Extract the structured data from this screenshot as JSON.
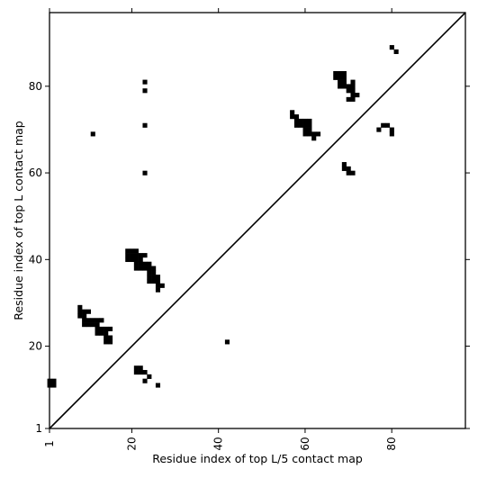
{
  "chart_data": {
    "type": "heatmap",
    "title": "",
    "xlabel": "Residue index of top L/5 contact map",
    "ylabel": "Residue index of top L contact map",
    "xlim": [
      1,
      97
    ],
    "ylim": [
      1,
      97
    ],
    "xticks": [
      1,
      20,
      40,
      60,
      80
    ],
    "yticks": [
      1,
      20,
      40,
      60,
      80
    ],
    "diagonal": true,
    "colors": {
      "cell": "#000000",
      "background": "#ffffff",
      "frame": "#000000"
    },
    "upper_cells": [
      [
        1,
        11
      ],
      [
        2,
        11
      ],
      [
        1,
        12
      ],
      [
        2,
        12
      ],
      [
        8,
        27
      ],
      [
        9,
        27
      ],
      [
        8,
        28
      ],
      [
        9,
        28
      ],
      [
        10,
        28
      ],
      [
        8,
        29
      ],
      [
        9,
        25
      ],
      [
        10,
        25
      ],
      [
        11,
        25
      ],
      [
        12,
        25
      ],
      [
        9,
        26
      ],
      [
        10,
        26
      ],
      [
        11,
        26
      ],
      [
        12,
        26
      ],
      [
        13,
        26
      ],
      [
        12,
        23
      ],
      [
        13,
        23
      ],
      [
        14,
        23
      ],
      [
        12,
        24
      ],
      [
        13,
        24
      ],
      [
        14,
        24
      ],
      [
        15,
        24
      ],
      [
        14,
        21
      ],
      [
        15,
        21
      ],
      [
        14,
        22
      ],
      [
        15,
        22
      ],
      [
        19,
        40
      ],
      [
        20,
        40
      ],
      [
        21,
        40
      ],
      [
        22,
        40
      ],
      [
        19,
        41
      ],
      [
        20,
        41
      ],
      [
        21,
        41
      ],
      [
        22,
        41
      ],
      [
        23,
        41
      ],
      [
        19,
        42
      ],
      [
        20,
        42
      ],
      [
        21,
        42
      ],
      [
        21,
        38
      ],
      [
        22,
        38
      ],
      [
        23,
        38
      ],
      [
        24,
        38
      ],
      [
        25,
        38
      ],
      [
        21,
        39
      ],
      [
        22,
        39
      ],
      [
        23,
        39
      ],
      [
        24,
        39
      ],
      [
        24,
        35
      ],
      [
        25,
        35
      ],
      [
        26,
        35
      ],
      [
        24,
        36
      ],
      [
        25,
        36
      ],
      [
        26,
        36
      ],
      [
        24,
        37
      ],
      [
        25,
        37
      ],
      [
        26,
        33
      ],
      [
        26,
        34
      ],
      [
        27,
        34
      ],
      [
        11,
        69
      ],
      [
        23,
        60
      ],
      [
        23,
        71
      ],
      [
        23,
        79
      ],
      [
        23,
        81
      ],
      [
        57,
        73
      ],
      [
        58,
        73
      ],
      [
        57,
        74
      ],
      [
        58,
        72
      ],
      [
        59,
        72
      ],
      [
        60,
        72
      ],
      [
        61,
        72
      ],
      [
        58,
        71
      ],
      [
        59,
        71
      ],
      [
        60,
        71
      ],
      [
        61,
        71
      ],
      [
        60,
        70
      ],
      [
        61,
        70
      ],
      [
        60,
        69
      ],
      [
        61,
        69
      ],
      [
        62,
        69
      ],
      [
        63,
        69
      ],
      [
        62,
        68
      ],
      [
        67,
        82
      ],
      [
        68,
        82
      ],
      [
        69,
        82
      ],
      [
        67,
        83
      ],
      [
        68,
        83
      ],
      [
        69,
        83
      ],
      [
        68,
        80
      ],
      [
        69,
        80
      ],
      [
        70,
        80
      ],
      [
        71,
        80
      ],
      [
        68,
        81
      ],
      [
        69,
        81
      ],
      [
        71,
        81
      ],
      [
        70,
        79
      ],
      [
        71,
        79
      ],
      [
        70,
        77
      ],
      [
        71,
        77
      ],
      [
        71,
        78
      ],
      [
        72,
        78
      ],
      [
        69,
        61
      ],
      [
        70,
        61
      ],
      [
        69,
        62
      ],
      [
        70,
        60
      ],
      [
        71,
        60
      ],
      [
        77,
        70
      ],
      [
        78,
        71
      ],
      [
        79,
        71
      ],
      [
        80,
        70
      ],
      [
        80,
        69
      ],
      [
        80,
        89
      ],
      [
        81,
        88
      ]
    ],
    "lower_cells": [
      [
        21,
        14
      ],
      [
        22,
        14
      ],
      [
        21,
        15
      ],
      [
        22,
        15
      ],
      [
        23,
        14
      ],
      [
        24,
        13
      ],
      [
        23,
        12
      ],
      [
        26,
        11
      ],
      [
        42,
        21
      ]
    ]
  }
}
